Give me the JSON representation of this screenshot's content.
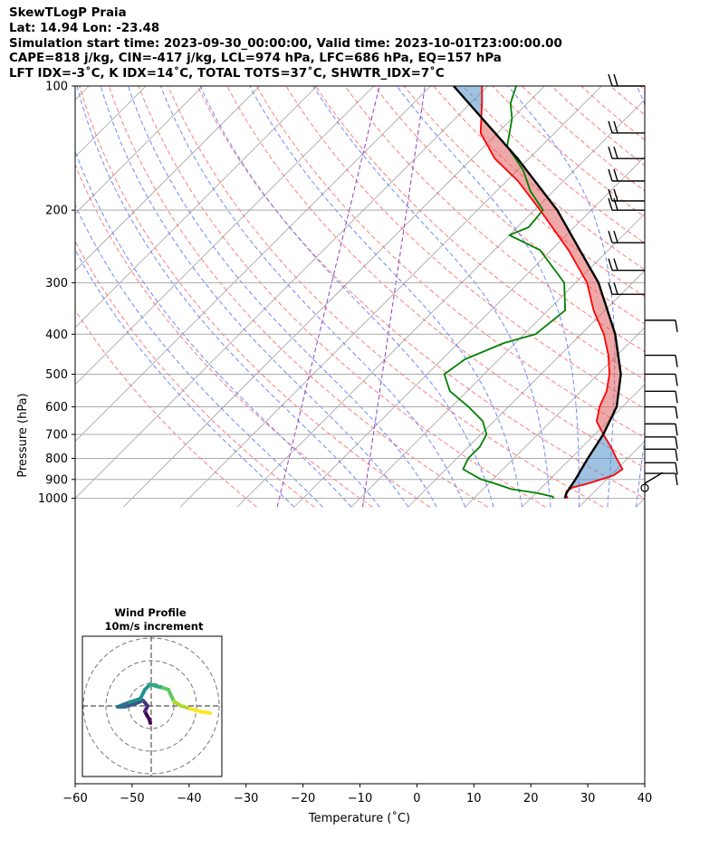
{
  "header": {
    "line1": "SkewTLogP Praia",
    "line2": "Lat: 14.94   Lon: -23.48",
    "line3": "Simulation start time: 2023-09-30_00:00:00, Valid time: 2023-10-01T23:00:00.00",
    "line4": "CAPE=818 j/kg, CIN=-417 j/kg, LCL=974 hPa, LFC=686 hPa, EQ=157 hPa",
    "line5": "LFT IDX=-3˚C, K IDX=14˚C, TOTAL TOTS=37˚C, SHWTR_IDX=7˚C"
  },
  "chart_data": {
    "type": "line",
    "title": "SkewTLogP Praia",
    "xlabel": "Temperature (˚C)",
    "ylabel": "Pressure (hPa)",
    "xlim": [
      -60,
      40
    ],
    "ylim": [
      1050,
      100
    ],
    "x_ticks": [
      "−60",
      "−50",
      "−40",
      "−30",
      "−20",
      "−10",
      "0",
      "10",
      "20",
      "30",
      "40"
    ],
    "y_ticks": [
      "1000",
      "900",
      "800",
      "700",
      "600",
      "500",
      "400",
      "300",
      "200",
      "100"
    ],
    "y_tick_values": [
      1000,
      900,
      800,
      700,
      600,
      500,
      400,
      300,
      200,
      100
    ],
    "grid": true,
    "colors": {
      "temperature": "#ff0000",
      "dewpoint": "#008000",
      "parcel": "#000000",
      "cape": "#e06060",
      "cin": "#5090c8",
      "dry_adiabat": "#ff5050",
      "moist_adiabat": "#4060ff",
      "mixing": "#9040c0",
      "isotherm": "#a0a0a0"
    },
    "temperature": [
      [
        1000,
        26.5
      ],
      [
        980,
        25.5
      ],
      [
        960,
        25.0
      ],
      [
        940,
        25.5
      ],
      [
        920,
        27.5
      ],
      [
        880,
        30.5
      ],
      [
        850,
        31
      ],
      [
        800,
        28
      ],
      [
        750,
        25
      ],
      [
        700,
        21.5
      ],
      [
        650,
        18
      ],
      [
        600,
        16
      ],
      [
        550,
        14.5
      ],
      [
        500,
        12
      ],
      [
        450,
        8.5
      ],
      [
        400,
        4
      ],
      [
        350,
        -2
      ],
      [
        300,
        -8
      ],
      [
        250,
        -17
      ],
      [
        200,
        -29
      ],
      [
        170,
        -38
      ],
      [
        150,
        -46
      ],
      [
        130,
        -53
      ],
      [
        110,
        -58
      ],
      [
        100,
        -61
      ]
    ],
    "dewpoint": [
      [
        1000,
        24
      ],
      [
        990,
        23.5
      ],
      [
        970,
        20
      ],
      [
        950,
        15
      ],
      [
        920,
        11
      ],
      [
        900,
        8
      ],
      [
        870,
        5
      ],
      [
        850,
        3
      ],
      [
        800,
        2
      ],
      [
        750,
        2
      ],
      [
        700,
        1
      ],
      [
        650,
        -2
      ],
      [
        600,
        -7
      ],
      [
        550,
        -13
      ],
      [
        500,
        -17
      ],
      [
        460,
        -16
      ],
      [
        420,
        -12
      ],
      [
        400,
        -8
      ],
      [
        350,
        -7
      ],
      [
        300,
        -12
      ],
      [
        250,
        -22
      ],
      [
        230,
        -30
      ],
      [
        220,
        -28
      ],
      [
        200,
        -28.5
      ],
      [
        180,
        -34
      ],
      [
        160,
        -39
      ],
      [
        140,
        -46
      ],
      [
        120,
        -50
      ],
      [
        110,
        -53
      ],
      [
        100,
        -55
      ]
    ],
    "parcel": [
      [
        1000,
        26
      ],
      [
        980,
        25.5
      ],
      [
        960,
        25.2
      ],
      [
        900,
        24.5
      ],
      [
        800,
        23
      ],
      [
        700,
        21.5
      ],
      [
        600,
        19
      ],
      [
        500,
        14
      ],
      [
        400,
        6
      ],
      [
        300,
        -6
      ],
      [
        250,
        -15
      ],
      [
        200,
        -26
      ],
      [
        150,
        -42
      ],
      [
        100,
        -66
      ]
    ],
    "wind_barbs": [
      [
        100,
        0
      ],
      [
        130,
        0
      ],
      [
        150,
        0
      ],
      [
        170,
        0
      ],
      [
        190,
        0
      ],
      [
        200,
        0
      ],
      [
        240,
        0
      ],
      [
        280,
        0
      ],
      [
        320,
        0
      ],
      [
        370,
        180
      ],
      [
        450,
        180
      ],
      [
        500,
        180
      ],
      [
        550,
        180
      ],
      [
        600,
        180
      ],
      [
        660,
        180
      ],
      [
        710,
        180
      ],
      [
        760,
        180
      ],
      [
        820,
        180
      ],
      [
        870,
        180
      ],
      [
        920,
        150
      ]
    ],
    "inset": {
      "title": "Wind Profile",
      "subtitle": "10m/s increment"
    }
  }
}
